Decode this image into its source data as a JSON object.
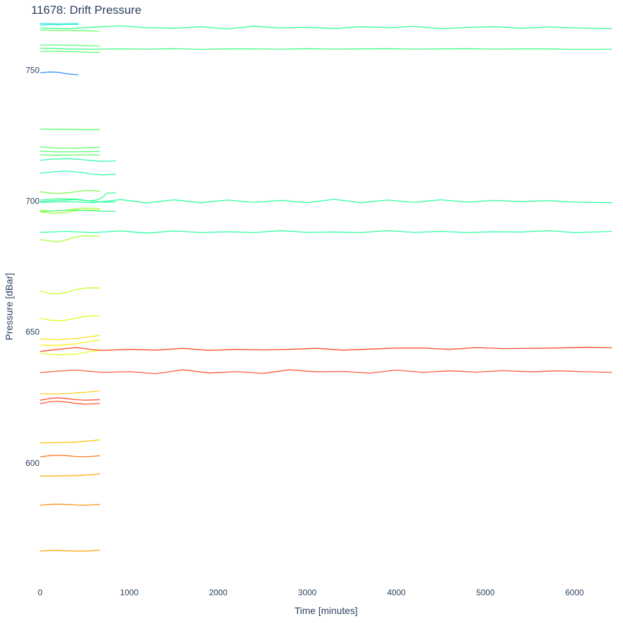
{
  "chart_data": {
    "type": "line",
    "title": "11678: Drift Pressure",
    "xlabel": "Time [minutes]",
    "ylabel": "Pressure [dBar]",
    "xlim": [
      0,
      6420
    ],
    "ylim": [
      767,
      554
    ],
    "y_reversed": true,
    "grid": false,
    "legend": "none",
    "x_ticks": [
      0,
      1000,
      2000,
      3000,
      4000,
      5000,
      6000
    ],
    "y_ticks": [
      600,
      650,
      700,
      750
    ],
    "series": [
      {
        "color": "#ffa500",
        "x": [
          0,
          100,
          200,
          300,
          400,
          500,
          600,
          670
        ],
        "y": [
          566.4,
          566.6,
          566.6,
          566.5,
          566.4,
          566.4,
          566.6,
          566.7
        ]
      },
      {
        "color": "#ff9010",
        "x": [
          0,
          100,
          200,
          300,
          400,
          500,
          600,
          670
        ],
        "y": [
          583.9,
          584.2,
          584.3,
          584.2,
          584.0,
          583.9,
          584.1,
          584.2
        ]
      },
      {
        "color": "#ffaa00",
        "x": [
          0,
          200,
          400,
          600,
          670
        ],
        "y": [
          595.0,
          595.1,
          595.2,
          595.6,
          595.9
        ]
      },
      {
        "color": "#ff7a1c",
        "x": [
          0,
          100,
          200,
          300,
          400,
          500,
          600,
          670
        ],
        "y": [
          602.3,
          602.8,
          603.0,
          602.8,
          602.5,
          602.4,
          602.6,
          602.8
        ]
      },
      {
        "color": "#ffc20a",
        "x": [
          0,
          200,
          400,
          600,
          670
        ],
        "y": [
          607.7,
          607.8,
          608.0,
          608.6,
          608.9
        ]
      },
      {
        "color": "#ff5a32",
        "x": [
          0,
          100,
          200,
          300,
          400,
          500,
          600,
          670
        ],
        "y": [
          622.6,
          623.4,
          623.6,
          623.3,
          622.8,
          622.5,
          622.6,
          622.7
        ]
      },
      {
        "color": "#ff4c36",
        "x": [
          0,
          100,
          200,
          300,
          400,
          500,
          600,
          670
        ],
        "y": [
          624.0,
          624.6,
          624.9,
          624.6,
          624.2,
          624.0,
          624.1,
          624.2
        ]
      },
      {
        "color": "#ffd21a",
        "x": [
          0,
          200,
          400,
          600,
          670
        ],
        "y": [
          626.5,
          626.4,
          626.7,
          627.3,
          627.6
        ]
      },
      {
        "color": "#e6ff1a",
        "x": [
          0,
          200,
          400,
          600,
          670
        ],
        "y": [
          641.9,
          641.3,
          641.6,
          642.8,
          643.0
        ]
      },
      {
        "color": "#fff01a",
        "x": [
          0,
          200,
          400,
          600,
          670
        ],
        "y": [
          645.0,
          645.0,
          645.5,
          646.7,
          647.0
        ]
      },
      {
        "color": "#ffe01a",
        "x": [
          0,
          200,
          400,
          600,
          670
        ],
        "y": [
          647.4,
          647.1,
          647.5,
          648.4,
          648.8
        ]
      },
      {
        "color": "#d8ff1e",
        "x": [
          0,
          100,
          200,
          300,
          400,
          500,
          600,
          670
        ],
        "y": [
          655.3,
          654.6,
          654.3,
          654.6,
          655.3,
          656.0,
          656.2,
          656.1
        ]
      },
      {
        "color": "#c4ff28",
        "x": [
          0,
          100,
          200,
          300,
          400,
          500,
          600,
          670
        ],
        "y": [
          665.6,
          664.8,
          664.6,
          665.2,
          666.2,
          666.8,
          666.9,
          666.8
        ]
      },
      {
        "color": "#a8ff34",
        "x": [
          0,
          100,
          200,
          300,
          400,
          500,
          600,
          670
        ],
        "y": [
          685.3,
          684.8,
          684.5,
          685.2,
          686.3,
          686.8,
          686.7,
          686.5
        ]
      },
      {
        "color": "#a6ff2e",
        "x": [
          0,
          100,
          200,
          300,
          400,
          500,
          600,
          670
        ],
        "y": [
          695.9,
          695.5,
          695.4,
          695.7,
          696.3,
          696.6,
          696.5,
          696.4
        ]
      },
      {
        "color": "#b2ff2a",
        "x": [
          0,
          100,
          200,
          300,
          400,
          500,
          600,
          670
        ],
        "y": [
          696.6,
          696.2,
          696.3,
          696.6,
          697.1,
          697.3,
          697.2,
          697.1
        ]
      },
      {
        "color": "#44ff88",
        "x": [
          0,
          200,
          400,
          600,
          700,
          850
        ],
        "y": [
          696.0,
          696.4,
          696.6,
          696.3,
          696.1,
          696.1
        ]
      },
      {
        "color": "#2effa0",
        "x": [
          0,
          200,
          400,
          550,
          700,
          850
        ],
        "y": [
          699.8,
          700.3,
          700.6,
          700.0,
          699.6,
          699.7
        ]
      },
      {
        "color": "#3cff90",
        "x": [
          0,
          200,
          400,
          550,
          650,
          700,
          750,
          850
        ],
        "y": [
          700.4,
          700.9,
          700.8,
          700.1,
          700.5,
          701.5,
          703.0,
          703.2
        ]
      },
      {
        "color": "#7cff4c",
        "x": [
          0,
          100,
          200,
          300,
          400,
          500,
          600,
          670
        ],
        "y": [
          703.6,
          703.1,
          702.9,
          703.1,
          703.6,
          704.0,
          704.0,
          703.8
        ]
      },
      {
        "color": "#2effa8",
        "x": [
          0,
          150,
          300,
          450,
          600,
          700,
          850
        ],
        "y": [
          710.6,
          711.2,
          711.5,
          711.0,
          710.2,
          710.0,
          710.3
        ]
      },
      {
        "color": "#2effa8",
        "x": [
          0,
          150,
          300,
          450,
          600,
          700,
          850
        ],
        "y": [
          715.6,
          716.0,
          716.2,
          715.9,
          715.4,
          715.2,
          715.3
        ]
      },
      {
        "color": "#5cff66",
        "x": [
          0,
          200,
          400,
          600,
          670
        ],
        "y": [
          717.6,
          717.5,
          717.6,
          717.6,
          717.6
        ]
      },
      {
        "color": "#54ff70",
        "x": [
          0,
          200,
          400,
          600,
          670
        ],
        "y": [
          719.1,
          718.8,
          718.8,
          719.0,
          719.0
        ]
      },
      {
        "color": "#5cff6a",
        "x": [
          0,
          200,
          400,
          600,
          670
        ],
        "y": [
          720.7,
          720.2,
          720.2,
          720.5,
          720.6
        ]
      },
      {
        "color": "#58ff6e",
        "x": [
          0,
          200,
          400,
          600,
          670
        ],
        "y": [
          727.5,
          727.4,
          727.3,
          727.3,
          727.3
        ]
      },
      {
        "color": "#2a8cff",
        "x": [
          0,
          100,
          200,
          300,
          430
        ],
        "y": [
          749.0,
          749.3,
          749.2,
          748.6,
          748.2
        ]
      },
      {
        "color": "#5cff6a",
        "x": [
          0,
          200,
          400,
          600,
          670
        ],
        "y": [
          757.1,
          757.2,
          757.0,
          756.8,
          756.8
        ]
      },
      {
        "color": "#58ff70",
        "x": [
          0,
          200,
          400,
          600,
          670
        ],
        "y": [
          759.6,
          759.6,
          759.5,
          759.3,
          759.2
        ]
      },
      {
        "color": "#6cff5e",
        "x": [
          0,
          200,
          400,
          600,
          670
        ],
        "y": [
          765.3,
          765.2,
          765.1,
          764.9,
          764.9
        ]
      },
      {
        "color": "#28e4e0",
        "x": [
          0,
          100,
          200,
          300,
          430
        ],
        "y": [
          767.8,
          767.8,
          767.6,
          767.7,
          767.8
        ]
      },
      {
        "color": "#30f0d8",
        "x": [
          0,
          100,
          200,
          300,
          430
        ],
        "y": [
          767.2,
          767.4,
          767.3,
          767.5,
          767.4
        ]
      },
      {
        "color": "#ff5a3a",
        "x": [
          0,
          200,
          400,
          600,
          700,
          1000,
          1300,
          1600,
          1900,
          2200,
          2500,
          2800,
          3100,
          3400,
          3700,
          4000,
          4300,
          4600,
          4900,
          5200,
          5500,
          5800,
          6100,
          6420
        ],
        "y": [
          634.5,
          635.1,
          635.5,
          634.9,
          634.6,
          634.9,
          634.1,
          635.6,
          634.4,
          634.9,
          634.2,
          635.6,
          634.8,
          635.0,
          634.3,
          635.5,
          634.6,
          635.2,
          634.7,
          635.3,
          634.8,
          635.2,
          634.9,
          634.6
        ]
      },
      {
        "color": "#ff4a28",
        "x": [
          0,
          200,
          400,
          600,
          700,
          1000,
          1300,
          1600,
          1900,
          2200,
          2500,
          2800,
          3100,
          3400,
          3700,
          4000,
          4300,
          4600,
          4900,
          5200,
          5500,
          5800,
          6100,
          6420
        ],
        "y": [
          642.6,
          643.4,
          644.1,
          643.3,
          643.0,
          643.4,
          643.1,
          643.8,
          643.0,
          643.4,
          643.2,
          643.4,
          643.8,
          643.1,
          643.5,
          643.9,
          643.9,
          643.4,
          644.1,
          643.7,
          643.8,
          643.9,
          644.2,
          644.0
        ]
      },
      {
        "color": "#2effa0",
        "x": [
          0,
          300,
          600,
          900,
          1200,
          1500,
          1800,
          2100,
          2400,
          2700,
          3000,
          3300,
          3600,
          3900,
          4200,
          4500,
          4800,
          5100,
          5400,
          5700,
          6000,
          6420
        ],
        "y": [
          688.1,
          688.4,
          688.0,
          688.6,
          687.8,
          688.6,
          688.0,
          688.3,
          688.0,
          688.7,
          688.1,
          688.2,
          688.0,
          688.7,
          688.1,
          688.4,
          688.0,
          688.3,
          688.2,
          688.7,
          688.0,
          688.4
        ]
      },
      {
        "color": "#2effa0",
        "x": [
          0,
          300,
          600,
          900,
          1200,
          1500,
          1800,
          2100,
          2400,
          2700,
          3000,
          3300,
          3600,
          3900,
          4200,
          4500,
          4800,
          5100,
          5400,
          5700,
          6000,
          6420
        ],
        "y": [
          699.5,
          699.8,
          699.4,
          700.6,
          699.3,
          700.5,
          699.4,
          700.4,
          699.5,
          700.3,
          699.4,
          700.7,
          699.4,
          700.4,
          699.5,
          700.5,
          699.6,
          700.3,
          699.8,
          700.2,
          699.6,
          699.4
        ]
      },
      {
        "color": "#40ff84",
        "x": [
          0,
          300,
          600,
          900,
          1200,
          1500,
          1800,
          2100,
          2400,
          2700,
          3000,
          3300,
          3600,
          3900,
          4200,
          4500,
          4800,
          5100,
          5400,
          5700,
          6000,
          6420
        ],
        "y": [
          758.4,
          758.1,
          758.0,
          758.1,
          758.0,
          758.2,
          757.9,
          758.1,
          758.1,
          758.0,
          758.2,
          758.0,
          758.1,
          758.2,
          758.0,
          758.1,
          758.2,
          758.0,
          758.1,
          758.1,
          757.9,
          758.0
        ]
      },
      {
        "color": "#2eff94",
        "x": [
          0,
          300,
          600,
          900,
          1200,
          1500,
          1800,
          2100,
          2400,
          2700,
          3000,
          3300,
          3600,
          3900,
          4200,
          4500,
          4800,
          5100,
          5400,
          5700,
          6000,
          6420
        ],
        "y": [
          766.1,
          765.8,
          766.4,
          766.9,
          766.2,
          766.0,
          766.6,
          765.7,
          766.8,
          766.1,
          766.4,
          765.9,
          766.6,
          766.2,
          766.7,
          765.8,
          766.3,
          766.6,
          766.0,
          766.5,
          766.1,
          765.8
        ]
      }
    ]
  }
}
